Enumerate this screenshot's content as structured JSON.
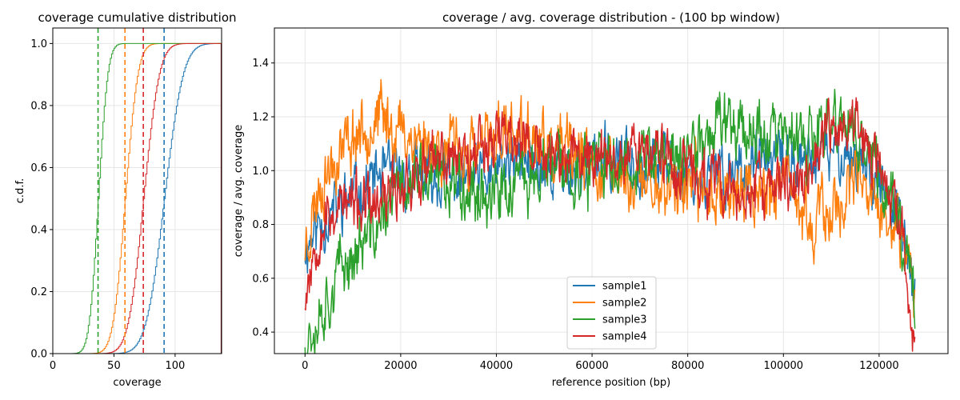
{
  "chart_data": [
    {
      "type": "line",
      "title": "coverage cumulative distribution",
      "xlabel": "coverage",
      "ylabel": "c.d.f.",
      "xlim": [
        0,
        138
      ],
      "ylim": [
        0,
        1.05
      ],
      "xticks": [
        0,
        50,
        100
      ],
      "xtick_labels": [
        "0",
        "50",
        "100"
      ],
      "yticks": [
        0.0,
        0.2,
        0.4,
        0.6,
        0.8,
        1.0
      ],
      "ytick_labels": [
        "0.0",
        "0.2",
        "0.4",
        "0.6",
        "0.8",
        "1.0"
      ],
      "grid": true,
      "series": [
        {
          "color": "#1f77b4",
          "mean": 91,
          "sd": 12
        },
        {
          "color": "#ff7f0e",
          "mean": 59,
          "sd": 8
        },
        {
          "color": "#2ca02c",
          "mean": 37,
          "sd": 6
        },
        {
          "color": "#d62728",
          "mean": 74,
          "sd": 10
        }
      ],
      "mean_lines": [
        {
          "x": 91,
          "color": "#1f77b4"
        },
        {
          "x": 59,
          "color": "#ff7f0e"
        },
        {
          "x": 37,
          "color": "#2ca02c"
        },
        {
          "x": 74,
          "color": "#d62728"
        }
      ]
    },
    {
      "type": "line",
      "title": "coverage / avg. coverage distribution - (100 bp window)",
      "xlabel": "reference position (bp)",
      "ylabel": "coverage / avg. coverage",
      "xlim": [
        -6400,
        134400
      ],
      "ylim": [
        0.32,
        1.53
      ],
      "xticks": [
        0,
        20000,
        40000,
        60000,
        80000,
        100000,
        120000
      ],
      "xtick_labels": [
        "0",
        "20000",
        "40000",
        "60000",
        "80000",
        "100000",
        "120000"
      ],
      "yticks": [
        0.4,
        0.6,
        0.8,
        1.0,
        1.2,
        1.4
      ],
      "ytick_labels": [
        "0.4",
        "0.6",
        "0.8",
        "1.0",
        "1.2",
        "1.4"
      ],
      "grid": true,
      "legend_position": "lower-center",
      "series": [
        {
          "name": "sample1",
          "color": "#1f77b4",
          "noise_seed": 11,
          "noise_amp": 0.09,
          "trend_x": [
            0,
            3000,
            8000,
            15000,
            25000,
            35000,
            45000,
            55000,
            65000,
            75000,
            85000,
            95000,
            105000,
            112000,
            118000,
            124000,
            127500
          ],
          "trend_y": [
            0.72,
            0.8,
            0.88,
            0.98,
            0.97,
            0.96,
            1.03,
            1.0,
            1.05,
            1.02,
            0.97,
            1.04,
            1.02,
            1.08,
            1.02,
            0.82,
            0.55
          ]
        },
        {
          "name": "sample2",
          "color": "#ff7f0e",
          "noise_seed": 23,
          "noise_amp": 0.1,
          "trend_x": [
            0,
            3000,
            8000,
            15000,
            25000,
            35000,
            42000,
            50000,
            60000,
            70000,
            80000,
            90000,
            100000,
            105000,
            110000,
            115000,
            120000,
            124000,
            127500
          ],
          "trend_y": [
            0.72,
            0.95,
            1.1,
            1.2,
            1.1,
            1.05,
            1.15,
            1.08,
            1.02,
            0.95,
            0.95,
            0.92,
            0.95,
            0.8,
            0.85,
            0.95,
            0.85,
            0.75,
            0.55
          ]
        },
        {
          "name": "sample3",
          "color": "#2ca02c",
          "noise_seed": 37,
          "noise_amp": 0.1,
          "trend_x": [
            0,
            3000,
            8000,
            15000,
            20000,
            30000,
            40000,
            50000,
            60000,
            70000,
            80000,
            88000,
            93000,
            100000,
            105000,
            112000,
            118000,
            124000,
            127500
          ],
          "trend_y": [
            0.38,
            0.48,
            0.65,
            0.78,
            0.95,
            0.98,
            0.9,
            1.0,
            1.0,
            1.05,
            1.05,
            1.22,
            1.15,
            1.12,
            1.08,
            1.2,
            1.05,
            0.85,
            0.55
          ]
        },
        {
          "name": "sample4",
          "color": "#d62728",
          "noise_seed": 53,
          "noise_amp": 0.09,
          "trend_x": [
            0,
            3000,
            8000,
            15000,
            20000,
            30000,
            42000,
            50000,
            60000,
            70000,
            80000,
            90000,
            100000,
            105000,
            110000,
            115000,
            120000,
            124000,
            127500
          ],
          "trend_y": [
            0.55,
            0.8,
            0.88,
            0.85,
            0.95,
            1.05,
            1.15,
            1.05,
            1.05,
            1.1,
            1.0,
            0.9,
            0.95,
            0.98,
            1.15,
            1.18,
            1.0,
            0.8,
            0.4
          ]
        }
      ]
    }
  ]
}
